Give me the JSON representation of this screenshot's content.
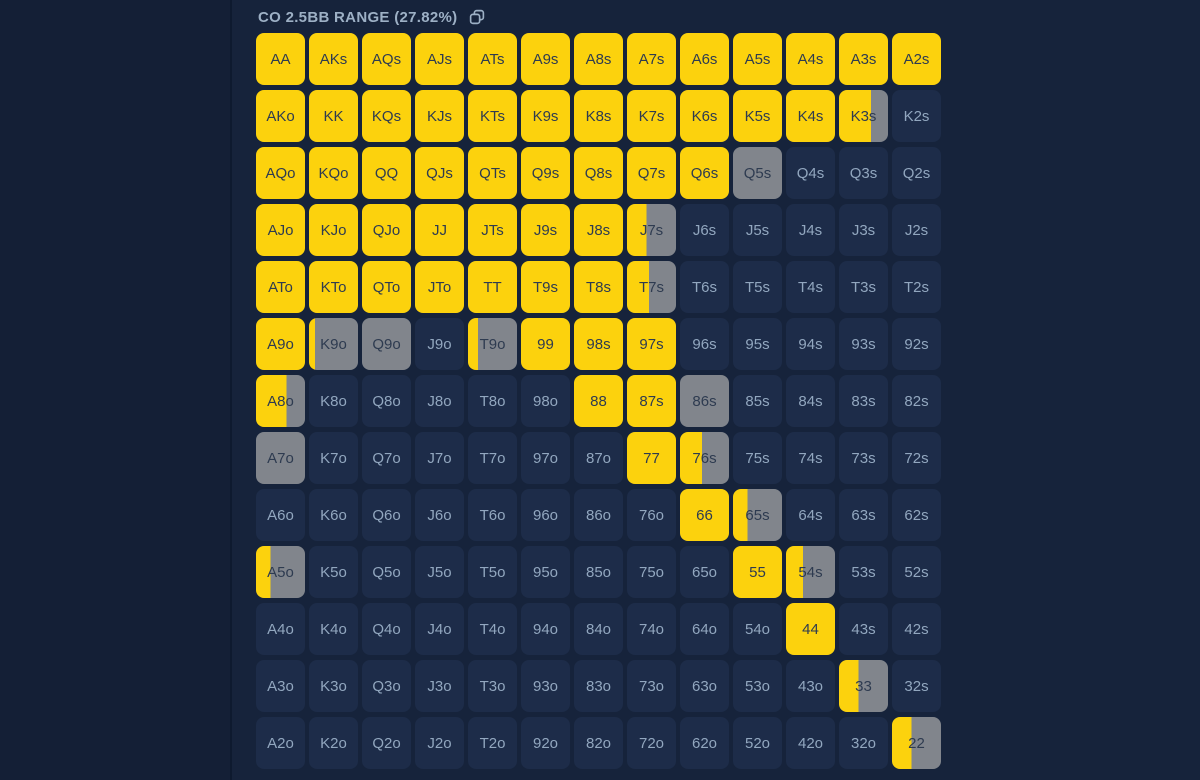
{
  "header": {
    "title": "CO 2.5BB RANGE (27.82%)",
    "copy_icon": "copy-icon"
  },
  "colors": {
    "background": "#16233B",
    "left_background": "#141F36",
    "divider": "#0E1A2F",
    "raise_yellow": "#FCD20D",
    "mixed_gray": "#81858C",
    "fold_cell": "#1D2C49",
    "fold_text": "#92A7BF",
    "cell_dark_text": "#2E3B50",
    "title_text": "#9DB0C5"
  },
  "chart_data": {
    "type": "heatmap",
    "title": "CO 2.5BB RANGE (27.82%)",
    "range_percent": "27.82%",
    "position": "CO",
    "raise_size": "2.5BB",
    "fill_legend": {
      "y": "full yellow cell",
      "g": "full gray cell",
      "d": "dark (unfilled) cell",
      "number": "fraction of cell filled yellow from left, remainder gray"
    },
    "rows": [
      [
        [
          "AA",
          "y"
        ],
        [
          "AKs",
          "y"
        ],
        [
          "AQs",
          "y"
        ],
        [
          "AJs",
          "y"
        ],
        [
          "ATs",
          "y"
        ],
        [
          "A9s",
          "y"
        ],
        [
          "A8s",
          "y"
        ],
        [
          "A7s",
          "y"
        ],
        [
          "A6s",
          "y"
        ],
        [
          "A5s",
          "y"
        ],
        [
          "A4s",
          "y"
        ],
        [
          "A3s",
          "y"
        ],
        [
          "A2s",
          "y"
        ]
      ],
      [
        [
          "AKo",
          "y"
        ],
        [
          "KK",
          "y"
        ],
        [
          "KQs",
          "y"
        ],
        [
          "KJs",
          "y"
        ],
        [
          "KTs",
          "y"
        ],
        [
          "K9s",
          "y"
        ],
        [
          "K8s",
          "y"
        ],
        [
          "K7s",
          "y"
        ],
        [
          "K6s",
          "y"
        ],
        [
          "K5s",
          "y"
        ],
        [
          "K4s",
          "y"
        ],
        [
          "K3s",
          0.65
        ],
        [
          "K2s",
          "d"
        ]
      ],
      [
        [
          "AQo",
          "y"
        ],
        [
          "KQo",
          "y"
        ],
        [
          "QQ",
          "y"
        ],
        [
          "QJs",
          "y"
        ],
        [
          "QTs",
          "y"
        ],
        [
          "Q9s",
          "y"
        ],
        [
          "Q8s",
          "y"
        ],
        [
          "Q7s",
          "y"
        ],
        [
          "Q6s",
          "y"
        ],
        [
          "Q5s",
          "g"
        ],
        [
          "Q4s",
          "d"
        ],
        [
          "Q3s",
          "d"
        ],
        [
          "Q2s",
          "d"
        ]
      ],
      [
        [
          "AJo",
          "y"
        ],
        [
          "KJo",
          "y"
        ],
        [
          "QJo",
          "y"
        ],
        [
          "JJ",
          "y"
        ],
        [
          "JTs",
          "y"
        ],
        [
          "J9s",
          "y"
        ],
        [
          "J8s",
          "y"
        ],
        [
          "J7s",
          0.4
        ],
        [
          "J6s",
          "d"
        ],
        [
          "J5s",
          "d"
        ],
        [
          "J4s",
          "d"
        ],
        [
          "J3s",
          "d"
        ],
        [
          "J2s",
          "d"
        ]
      ],
      [
        [
          "ATo",
          "y"
        ],
        [
          "KTo",
          "y"
        ],
        [
          "QTo",
          "y"
        ],
        [
          "JTo",
          "y"
        ],
        [
          "TT",
          "y"
        ],
        [
          "T9s",
          "y"
        ],
        [
          "T8s",
          "y"
        ],
        [
          "T7s",
          0.45
        ],
        [
          "T6s",
          "d"
        ],
        [
          "T5s",
          "d"
        ],
        [
          "T4s",
          "d"
        ],
        [
          "T3s",
          "d"
        ],
        [
          "T2s",
          "d"
        ]
      ],
      [
        [
          "A9o",
          "y"
        ],
        [
          "K9o",
          0.12
        ],
        [
          "Q9o",
          "g"
        ],
        [
          "J9o",
          "d"
        ],
        [
          "T9o",
          0.2
        ],
        [
          "99",
          "y"
        ],
        [
          "98s",
          "y"
        ],
        [
          "97s",
          "y"
        ],
        [
          "96s",
          "d"
        ],
        [
          "95s",
          "d"
        ],
        [
          "94s",
          "d"
        ],
        [
          "93s",
          "d"
        ],
        [
          "92s",
          "d"
        ]
      ],
      [
        [
          "A8o",
          0.62
        ],
        [
          "K8o",
          "d"
        ],
        [
          "Q8o",
          "d"
        ],
        [
          "J8o",
          "d"
        ],
        [
          "T8o",
          "d"
        ],
        [
          "98o",
          "d"
        ],
        [
          "88",
          "y"
        ],
        [
          "87s",
          "y"
        ],
        [
          "86s",
          "g"
        ],
        [
          "85s",
          "d"
        ],
        [
          "84s",
          "d"
        ],
        [
          "83s",
          "d"
        ],
        [
          "82s",
          "d"
        ]
      ],
      [
        [
          "A7o",
          "g"
        ],
        [
          "K7o",
          "d"
        ],
        [
          "Q7o",
          "d"
        ],
        [
          "J7o",
          "d"
        ],
        [
          "T7o",
          "d"
        ],
        [
          "97o",
          "d"
        ],
        [
          "87o",
          "d"
        ],
        [
          "77",
          "y"
        ],
        [
          "76s",
          0.45
        ],
        [
          "75s",
          "d"
        ],
        [
          "74s",
          "d"
        ],
        [
          "73s",
          "d"
        ],
        [
          "72s",
          "d"
        ]
      ],
      [
        [
          "A6o",
          "d"
        ],
        [
          "K6o",
          "d"
        ],
        [
          "Q6o",
          "d"
        ],
        [
          "J6o",
          "d"
        ],
        [
          "T6o",
          "d"
        ],
        [
          "96o",
          "d"
        ],
        [
          "86o",
          "d"
        ],
        [
          "76o",
          "d"
        ],
        [
          "66",
          "y"
        ],
        [
          "65s",
          0.3
        ],
        [
          "64s",
          "d"
        ],
        [
          "63s",
          "d"
        ],
        [
          "62s",
          "d"
        ]
      ],
      [
        [
          "A5o",
          0.3
        ],
        [
          "K5o",
          "d"
        ],
        [
          "Q5o",
          "d"
        ],
        [
          "J5o",
          "d"
        ],
        [
          "T5o",
          "d"
        ],
        [
          "95o",
          "d"
        ],
        [
          "85o",
          "d"
        ],
        [
          "75o",
          "d"
        ],
        [
          "65o",
          "d"
        ],
        [
          "55",
          "y"
        ],
        [
          "54s",
          0.35
        ],
        [
          "53s",
          "d"
        ],
        [
          "52s",
          "d"
        ]
      ],
      [
        [
          "A4o",
          "d"
        ],
        [
          "K4o",
          "d"
        ],
        [
          "Q4o",
          "d"
        ],
        [
          "J4o",
          "d"
        ],
        [
          "T4o",
          "d"
        ],
        [
          "94o",
          "d"
        ],
        [
          "84o",
          "d"
        ],
        [
          "74o",
          "d"
        ],
        [
          "64o",
          "d"
        ],
        [
          "54o",
          "d"
        ],
        [
          "44",
          "y"
        ],
        [
          "43s",
          "d"
        ],
        [
          "42s",
          "d"
        ]
      ],
      [
        [
          "A3o",
          "d"
        ],
        [
          "K3o",
          "d"
        ],
        [
          "Q3o",
          "d"
        ],
        [
          "J3o",
          "d"
        ],
        [
          "T3o",
          "d"
        ],
        [
          "93o",
          "d"
        ],
        [
          "83o",
          "d"
        ],
        [
          "73o",
          "d"
        ],
        [
          "63o",
          "d"
        ],
        [
          "53o",
          "d"
        ],
        [
          "43o",
          "d"
        ],
        [
          "33",
          0.4
        ],
        [
          "32s",
          "d"
        ]
      ],
      [
        [
          "A2o",
          "d"
        ],
        [
          "K2o",
          "d"
        ],
        [
          "Q2o",
          "d"
        ],
        [
          "J2o",
          "d"
        ],
        [
          "T2o",
          "d"
        ],
        [
          "92o",
          "d"
        ],
        [
          "82o",
          "d"
        ],
        [
          "72o",
          "d"
        ],
        [
          "62o",
          "d"
        ],
        [
          "52o",
          "d"
        ],
        [
          "42o",
          "d"
        ],
        [
          "32o",
          "d"
        ],
        [
          "22",
          0.4
        ]
      ]
    ]
  }
}
